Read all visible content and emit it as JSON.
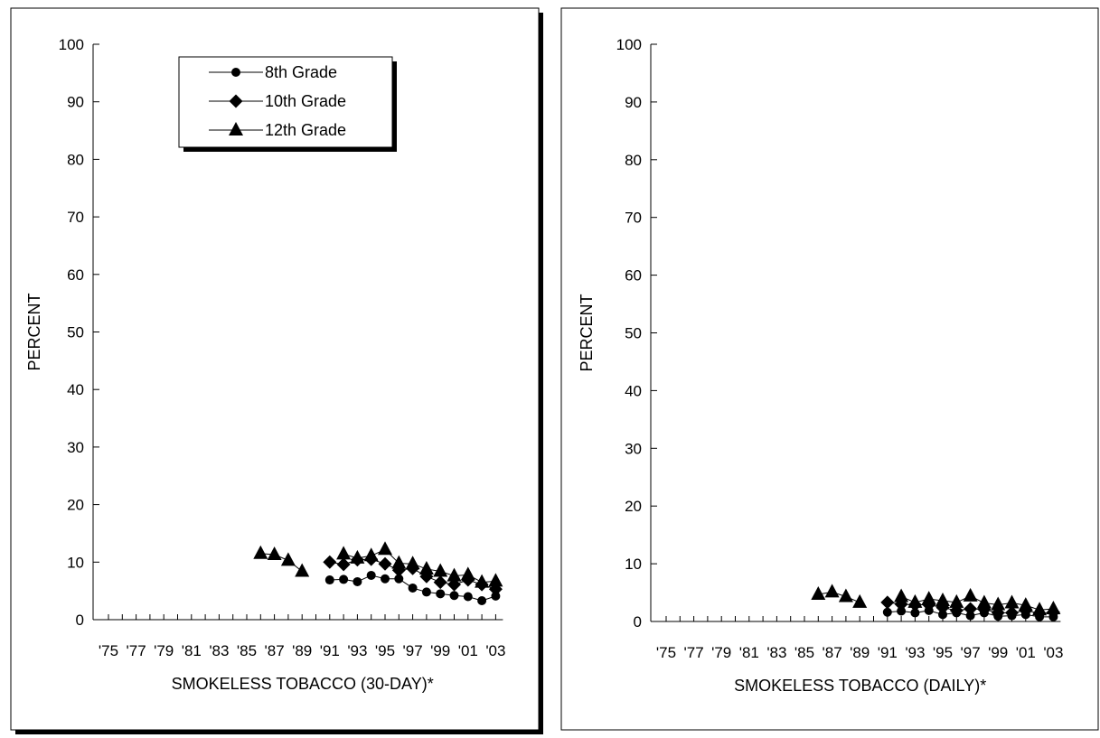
{
  "chart_data": [
    {
      "type": "line",
      "title": "",
      "xlabel": "SMOKELESS TOBACCO (30-DAY)*",
      "ylabel": "PERCENT",
      "ylim": [
        0,
        100
      ],
      "yticks": [
        "0",
        "10",
        "20",
        "30",
        "40",
        "50",
        "60",
        "70",
        "80",
        "90",
        "100"
      ],
      "x": [
        1975,
        1976,
        1977,
        1978,
        1979,
        1980,
        1981,
        1982,
        1983,
        1984,
        1985,
        1986,
        1987,
        1988,
        1989,
        1990,
        1991,
        1992,
        1993,
        1994,
        1995,
        1996,
        1997,
        1998,
        1999,
        2000,
        2001,
        2002,
        2003
      ],
      "xtick_labels": [
        {
          "year": 1975,
          "label": "'75"
        },
        {
          "year": 1977,
          "label": "'77"
        },
        {
          "year": 1979,
          "label": "'79"
        },
        {
          "year": 1981,
          "label": "'81"
        },
        {
          "year": 1983,
          "label": "'83"
        },
        {
          "year": 1985,
          "label": "'85"
        },
        {
          "year": 1987,
          "label": "'87"
        },
        {
          "year": 1989,
          "label": "'89"
        },
        {
          "year": 1991,
          "label": "'91"
        },
        {
          "year": 1993,
          "label": "'93"
        },
        {
          "year": 1995,
          "label": "'95"
        },
        {
          "year": 1997,
          "label": "'97"
        },
        {
          "year": 1999,
          "label": "'99"
        },
        {
          "year": 2001,
          "label": "'01"
        },
        {
          "year": 2003,
          "label": "'03"
        }
      ],
      "grid": false,
      "legend": "top-center",
      "series": [
        {
          "name": "8th Grade",
          "marker": "circle",
          "values": [
            null,
            null,
            null,
            null,
            null,
            null,
            null,
            null,
            null,
            null,
            null,
            null,
            null,
            null,
            null,
            null,
            6.9,
            7.0,
            6.6,
            7.7,
            7.1,
            7.1,
            5.5,
            4.8,
            4.5,
            4.2,
            4.0,
            3.3,
            4.1
          ]
        },
        {
          "name": "10th Grade",
          "marker": "diamond",
          "values": [
            null,
            null,
            null,
            null,
            null,
            null,
            null,
            null,
            null,
            null,
            null,
            null,
            null,
            null,
            null,
            null,
            10.0,
            9.6,
            10.4,
            10.5,
            9.7,
            8.6,
            8.9,
            7.5,
            6.5,
            6.1,
            6.9,
            6.1,
            5.3
          ]
        },
        {
          "name": "12th Grade",
          "marker": "triangle",
          "values": [
            null,
            null,
            null,
            null,
            null,
            null,
            null,
            null,
            null,
            null,
            null,
            11.5,
            11.3,
            10.3,
            8.4,
            null,
            null,
            11.4,
            10.7,
            11.1,
            12.2,
            9.8,
            9.7,
            8.8,
            8.4,
            7.6,
            7.8,
            6.5,
            6.7
          ]
        }
      ]
    },
    {
      "type": "line",
      "title": "",
      "xlabel": "SMOKELESS TOBACCO (DAILY)*",
      "ylabel": "PERCENT",
      "ylim": [
        0,
        100
      ],
      "yticks": [
        "0",
        "10",
        "20",
        "30",
        "40",
        "50",
        "60",
        "70",
        "80",
        "90",
        "100"
      ],
      "x": [
        1975,
        1976,
        1977,
        1978,
        1979,
        1980,
        1981,
        1982,
        1983,
        1984,
        1985,
        1986,
        1987,
        1988,
        1989,
        1990,
        1991,
        1992,
        1993,
        1994,
        1995,
        1996,
        1997,
        1998,
        1999,
        2000,
        2001,
        2002,
        2003
      ],
      "xtick_labels": [
        {
          "year": 1975,
          "label": "'75"
        },
        {
          "year": 1977,
          "label": "'77"
        },
        {
          "year": 1979,
          "label": "'79"
        },
        {
          "year": 1981,
          "label": "'81"
        },
        {
          "year": 1983,
          "label": "'83"
        },
        {
          "year": 1985,
          "label": "'85"
        },
        {
          "year": 1987,
          "label": "'87"
        },
        {
          "year": 1989,
          "label": "'89"
        },
        {
          "year": 1991,
          "label": "'91"
        },
        {
          "year": 1993,
          "label": "'93"
        },
        {
          "year": 1995,
          "label": "'95"
        },
        {
          "year": 1997,
          "label": "'97"
        },
        {
          "year": 1999,
          "label": "'99"
        },
        {
          "year": 2001,
          "label": "'01"
        },
        {
          "year": 2003,
          "label": "'03"
        }
      ],
      "grid": false,
      "legend": "none",
      "series": [
        {
          "name": "8th Grade",
          "marker": "circle",
          "values": [
            null,
            null,
            null,
            null,
            null,
            null,
            null,
            null,
            null,
            null,
            null,
            null,
            null,
            null,
            null,
            null,
            1.6,
            1.8,
            1.5,
            1.9,
            1.2,
            1.5,
            1.0,
            1.5,
            0.9,
            1.0,
            1.2,
            0.8,
            0.8
          ]
        },
        {
          "name": "10th Grade",
          "marker": "diamond",
          "values": [
            null,
            null,
            null,
            null,
            null,
            null,
            null,
            null,
            null,
            null,
            null,
            null,
            null,
            null,
            null,
            null,
            3.3,
            3.0,
            2.9,
            2.9,
            2.4,
            1.9,
            2.2,
            2.1,
            1.5,
            1.5,
            1.9,
            1.4,
            1.6
          ]
        },
        {
          "name": "12th Grade",
          "marker": "triangle",
          "values": [
            null,
            null,
            null,
            null,
            null,
            null,
            null,
            null,
            null,
            null,
            null,
            4.7,
            5.1,
            4.3,
            3.3,
            null,
            null,
            4.3,
            3.3,
            3.9,
            3.6,
            3.3,
            4.4,
            3.2,
            2.9,
            3.2,
            2.8,
            2.0,
            2.2
          ]
        }
      ]
    }
  ]
}
